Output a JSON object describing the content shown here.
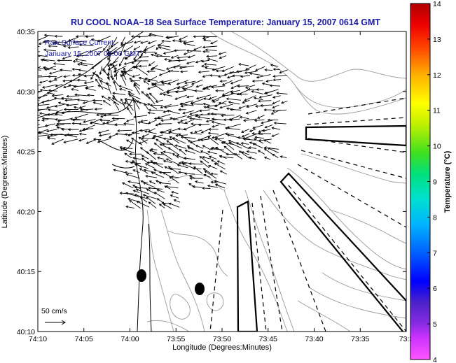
{
  "title": "RU COOL  NOAA–18  Sea Surface Temperature:  January 15, 2007 0614 GMT",
  "inset": {
    "line1": "Raw Surface Current:",
    "line2": "January 15, 2007 06:00 GMT"
  },
  "scale_label": "50 cm/s",
  "x_axis": {
    "label": "Longitude (Degrees:Minutes)",
    "ticks": [
      "74:10",
      "74:05",
      "74:00",
      "73:55",
      "73:50",
      "73:45",
      "73:40",
      "73:35",
      "73:3"
    ]
  },
  "y_axis": {
    "label": "Latitude (Degrees:Minutes)",
    "ticks": [
      "40:10",
      "40:15",
      "40:20",
      "40:25",
      "40:30",
      "40:35"
    ]
  },
  "colorbar": {
    "label": "Temperature (°C)",
    "ticks": [
      "4",
      "5",
      "6",
      "7",
      "8",
      "9",
      "10",
      "11",
      "12",
      "13",
      "14"
    ],
    "range": [
      4,
      14
    ]
  },
  "colors": {
    "title": "#1a1aa6",
    "vectors": "#000000",
    "coast": "#000000",
    "bathymetry": "#9a9a9a"
  }
}
